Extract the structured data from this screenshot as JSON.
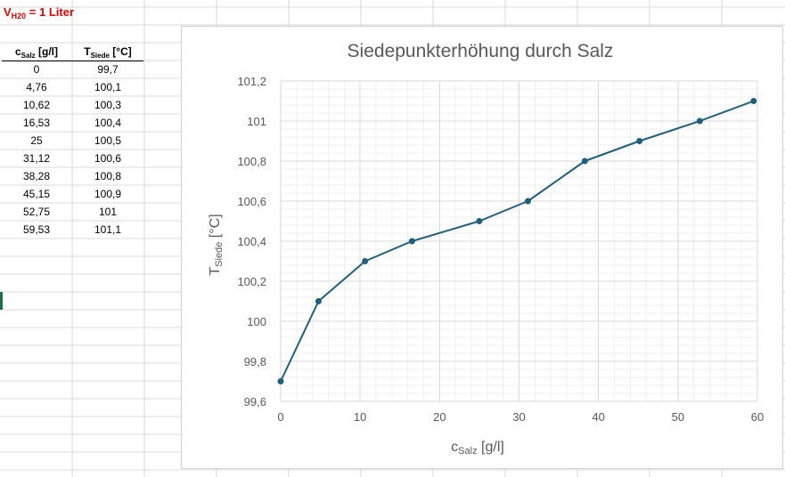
{
  "sheet": {
    "volume_label": {
      "main": "V",
      "sub": "H20",
      "rest": " = 1 Liter"
    },
    "headers": [
      {
        "main": "c",
        "sub": "Salz",
        "rest": " [g/l]"
      },
      {
        "main": "T",
        "sub": "Siede",
        "rest": " [°C]"
      }
    ],
    "rows": [
      [
        "0",
        "99,7"
      ],
      [
        "4,76",
        "100,1"
      ],
      [
        "10,62",
        "100,3"
      ],
      [
        "16,53",
        "100,4"
      ],
      [
        "25",
        "100,5"
      ],
      [
        "31,12",
        "100,6"
      ],
      [
        "38,28",
        "100,8"
      ],
      [
        "45,15",
        "100,9"
      ],
      [
        "52,75",
        "101"
      ],
      [
        "59,53",
        "101,1"
      ]
    ]
  },
  "chart_data": {
    "type": "scatter",
    "title": "Siedepunkterhöhung durch Salz",
    "xlabel": {
      "main": "c",
      "sub": "Salz",
      "rest": " [g/l]"
    },
    "ylabel": {
      "main": "T",
      "sub": "Siede",
      "rest": " [°C]"
    },
    "x": [
      0,
      4.76,
      10.62,
      16.53,
      25,
      31.12,
      38.28,
      45.15,
      52.75,
      59.53
    ],
    "y": [
      99.7,
      100.1,
      100.3,
      100.4,
      100.5,
      100.6,
      100.8,
      100.9,
      101,
      101.1
    ],
    "xlim": [
      0,
      60
    ],
    "ylim": [
      99.6,
      101.2
    ],
    "xticks": [
      0,
      10,
      20,
      30,
      40,
      50,
      60
    ],
    "xtick_labels": [
      "0",
      "10",
      "20",
      "30",
      "40",
      "50",
      "60"
    ],
    "yticks": [
      99.6,
      99.8,
      100,
      100.2,
      100.4,
      100.6,
      100.8,
      101,
      101.2
    ],
    "ytick_labels": [
      "99,6",
      "99,8",
      "100",
      "100,2",
      "100,4",
      "100,6",
      "100,8",
      "101",
      "101,2"
    ],
    "line_style": "straight lines with markers",
    "grid": "major and minor",
    "legend": "none",
    "series_color": "#1f5f7a"
  }
}
